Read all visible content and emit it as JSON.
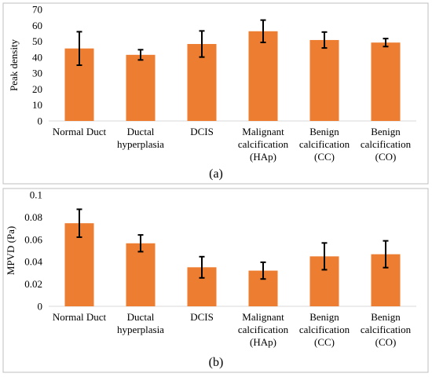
{
  "chart_data": [
    {
      "type": "bar",
      "panel_label": "(a)",
      "ylabel": "Peak density",
      "ylim": [
        0,
        70
      ],
      "yticks": [
        0,
        10,
        20,
        30,
        40,
        50,
        60,
        70
      ],
      "categories": [
        [
          "Normal Duct"
        ],
        [
          "Ductal",
          "hyperplasia"
        ],
        [
          "DCIS"
        ],
        [
          "Malignant",
          "calcification",
          "(HAp)"
        ],
        [
          "Benign",
          "calcification",
          "(CC)"
        ],
        [
          "Benign",
          "calcification",
          "(CO)"
        ]
      ],
      "values": [
        45.5,
        41.5,
        48.3,
        56.3,
        50.8,
        49.2
      ],
      "errors": [
        10.5,
        3.2,
        8.2,
        7.0,
        5.0,
        2.5
      ],
      "bar_color": "#ed7d31",
      "grid": false
    },
    {
      "type": "bar",
      "panel_label": "(b)",
      "ylabel": "MPVD (Pa)",
      "ylim": [
        0,
        0.1
      ],
      "yticks": [
        "0",
        "0.02",
        "0.04",
        "0.06",
        "0.08",
        "0.1"
      ],
      "categories": [
        [
          "Normal Duct"
        ],
        [
          "Ductal",
          "hyperplasia"
        ],
        [
          "DCIS"
        ],
        [
          "Malignant",
          "calcification",
          "(HAp)"
        ],
        [
          "Benign",
          "calcification",
          "(CC)"
        ],
        [
          "Benign",
          "calcification",
          "(CO)"
        ]
      ],
      "values": [
        0.0745,
        0.0565,
        0.035,
        0.032,
        0.0448,
        0.0467
      ],
      "errors": [
        0.0125,
        0.0075,
        0.0095,
        0.0075,
        0.012,
        0.012
      ],
      "bar_color": "#ed7d31",
      "grid": false
    }
  ]
}
